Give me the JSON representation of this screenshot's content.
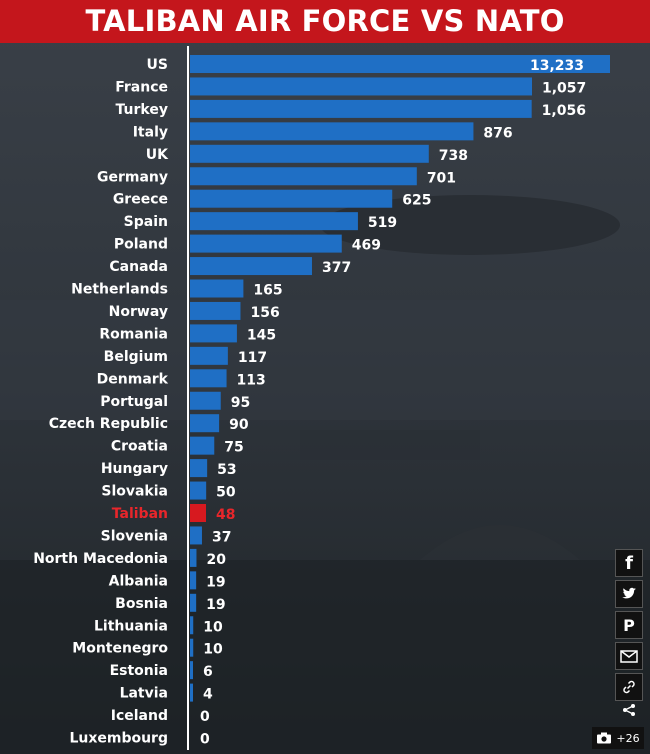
{
  "header": {
    "title": "TALIBAN AIR FORCE VS NATO"
  },
  "chart_data": {
    "type": "bar",
    "orientation": "horizontal",
    "title": "TALIBAN AIR FORCE VS NATO",
    "categories": [
      "US",
      "France",
      "Turkey",
      "Italy",
      "UK",
      "Germany",
      "Greece",
      "Spain",
      "Poland",
      "Canada",
      "Netherlands",
      "Norway",
      "Romania",
      "Belgium",
      "Denmark",
      "Portugal",
      "Czech Republic",
      "Croatia",
      "Hungary",
      "Slovakia",
      "Taliban",
      "Slovenia",
      "North Macedonia",
      "Albania",
      "Bosnia",
      "Lithuania",
      "Montenegro",
      "Estonia",
      "Latvia",
      "Iceland",
      "Luxembourg"
    ],
    "values": [
      13233,
      1057,
      1056,
      876,
      738,
      701,
      625,
      519,
      469,
      377,
      165,
      156,
      145,
      117,
      113,
      95,
      90,
      75,
      53,
      50,
      48,
      37,
      20,
      19,
      19,
      10,
      10,
      6,
      4,
      0,
      0
    ],
    "value_labels": [
      "13,233",
      "1,057",
      "1,056",
      "876",
      "738",
      "701",
      "625",
      "519",
      "469",
      "377",
      "165",
      "156",
      "145",
      "117",
      "113",
      "95",
      "90",
      "75",
      "53",
      "50",
      "48",
      "37",
      "20",
      "19",
      "19",
      "10",
      "10",
      "6",
      "4",
      "0",
      "0"
    ],
    "highlight": "Taliban",
    "colors": {
      "bar": "#1f6fc5",
      "highlight": "#d7191f",
      "header": "#c4161c"
    },
    "notes": "US bar is truncated (broken scale)"
  },
  "share": {
    "icons": [
      "facebook-icon",
      "twitter-icon",
      "pinterest-icon",
      "email-icon",
      "link-icon",
      "share-icon"
    ],
    "facebook": "f",
    "pinterest": "P",
    "gallery_count": "+26"
  }
}
